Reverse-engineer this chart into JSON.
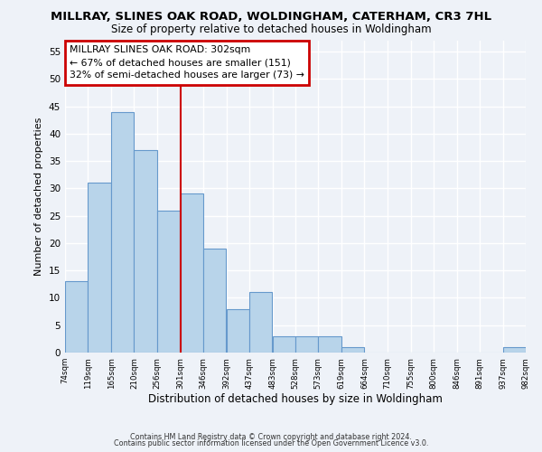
{
  "title": "MILLRAY, SLINES OAK ROAD, WOLDINGHAM, CATERHAM, CR3 7HL",
  "subtitle": "Size of property relative to detached houses in Woldingham",
  "xlabel": "Distribution of detached houses by size in Woldingham",
  "ylabel": "Number of detached properties",
  "bar_color": "#b8d4ea",
  "bar_edge_color": "#6699cc",
  "bins_left": [
    74,
    119,
    165,
    210,
    256,
    301,
    346,
    392,
    437,
    483,
    528,
    573,
    619,
    664,
    710,
    755,
    800,
    846,
    891,
    937
  ],
  "bin_width": 45,
  "values": [
    13,
    31,
    44,
    37,
    26,
    29,
    19,
    8,
    11,
    3,
    3,
    3,
    1,
    0,
    0,
    0,
    0,
    0,
    0,
    1
  ],
  "ylim": [
    0,
    57
  ],
  "yticks": [
    0,
    5,
    10,
    15,
    20,
    25,
    30,
    35,
    40,
    45,
    50,
    55
  ],
  "xtick_labels": [
    "74sqm",
    "119sqm",
    "165sqm",
    "210sqm",
    "256sqm",
    "301sqm",
    "346sqm",
    "392sqm",
    "437sqm",
    "483sqm",
    "528sqm",
    "573sqm",
    "619sqm",
    "664sqm",
    "710sqm",
    "755sqm",
    "800sqm",
    "846sqm",
    "891sqm",
    "937sqm",
    "982sqm"
  ],
  "vline_x": 301,
  "vline_color": "#cc0000",
  "annotation_text": "MILLRAY SLINES OAK ROAD: 302sqm\n← 67% of detached houses are smaller (151)\n32% of semi-detached houses are larger (73) →",
  "annotation_box_color": "white",
  "annotation_box_edge": "#cc0000",
  "footer_line1": "Contains HM Land Registry data © Crown copyright and database right 2024.",
  "footer_line2": "Contains public sector information licensed under the Open Government Licence v3.0.",
  "background_color": "#eef2f8",
  "grid_color": "white"
}
